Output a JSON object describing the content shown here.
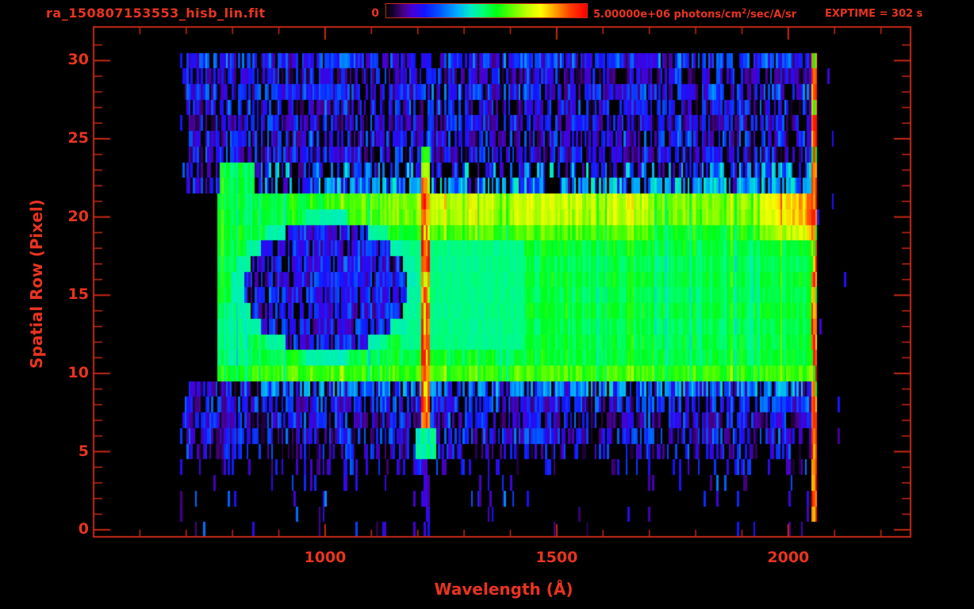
{
  "header": {
    "title": "ra_150807153553_hisb_lin.fit",
    "colorbar_min": "0",
    "colorbar_max_value": "5.00000e+06",
    "colorbar_units_pre": " photons/cm",
    "colorbar_units_sup": "2",
    "colorbar_units_post": "/sec/A/sr",
    "exptime": "EXPTIME = 302 s"
  },
  "chart_data": {
    "type": "heatmap",
    "title": "ra_150807153553_hisb_lin.fit",
    "xlabel": "Wavelength (Å)",
    "ylabel": "Spatial Row (Pixel)",
    "xlim": [
      500,
      2264
    ],
    "ylim": [
      -0.5,
      32.2
    ],
    "x_major_ticks": [
      1000,
      1500,
      2000
    ],
    "x_minor_start": 600,
    "x_minor_step": 100,
    "x_minor_end": 2200,
    "y_major_ticks": [
      0,
      5,
      10,
      15,
      20,
      25,
      30
    ],
    "y_minor_step": 1,
    "y_minor_max": 31,
    "colorbar": {
      "min": 0,
      "max": 5000000,
      "units": "photons/cm^2/sec/A/sr"
    },
    "exposure_time_s": 302,
    "colors": {
      "text": "#e83420",
      "line": "#c62a16",
      "background": "#000000"
    },
    "colormap_stops": [
      [
        0.0,
        0,
        0,
        0
      ],
      [
        0.04,
        30,
        0,
        60
      ],
      [
        0.08,
        70,
        0,
        130
      ],
      [
        0.13,
        70,
        0,
        220
      ],
      [
        0.19,
        20,
        20,
        255
      ],
      [
        0.27,
        0,
        90,
        255
      ],
      [
        0.35,
        0,
        170,
        255
      ],
      [
        0.42,
        0,
        235,
        200
      ],
      [
        0.48,
        0,
        255,
        120
      ],
      [
        0.55,
        0,
        255,
        20
      ],
      [
        0.62,
        90,
        255,
        0
      ],
      [
        0.7,
        190,
        255,
        0
      ],
      [
        0.77,
        255,
        255,
        0
      ],
      [
        0.85,
        255,
        150,
        0
      ],
      [
        0.92,
        255,
        60,
        0
      ],
      [
        1.0,
        255,
        0,
        0
      ]
    ],
    "data_extent": {
      "wavelength_min": 683,
      "wavelength_max": 2062,
      "row_min": 0,
      "row_max": 30
    },
    "features": {
      "seed": 20150807,
      "column_bin_angstrom": 4.45,
      "spectrum_band": {
        "row_bottom": 9.4,
        "row_top": 21.6,
        "wavelength_min": 766,
        "wavelength_max": 2055,
        "base_value": 0.52
      },
      "yellow_row_bump": {
        "row_center": 20.55,
        "row_sigma": 1.05,
        "amplitude": 0.16,
        "onset_wavelength": [
          880,
          1150
        ]
      },
      "mid_yellow_bonus": {
        "wavelength": [
          1230,
          1700
        ],
        "rows": [
          19,
          21
        ],
        "bonus": 0.05
      },
      "lower_bright_row": {
        "row_center": 10.2,
        "row_sigma": 0.8,
        "amplitude": 0.06
      },
      "left_bump": {
        "wavelength": [
          768,
          845
        ],
        "row_top": 23.4
      },
      "left_hole": {
        "wavelength_center": 1000,
        "row_center": 15.5,
        "wavelength_radius": 178,
        "row_radius": 4.05
      },
      "cyan_zone": {
        "wavelength": [
          1160,
          1430
        ],
        "rows": [
          12,
          18.5
        ],
        "value": 0.45
      },
      "lyman_alpha": {
        "wavelength": [
          1205,
          1224
        ],
        "rows_red": [
          7,
          22
        ],
        "row_shoulder": 23,
        "row_cap": 24,
        "rows_foot": [
          5,
          6
        ],
        "foot_wavelength": [
          1193,
          1236
        ],
        "value": 0.9
      },
      "right_edge": {
        "wavelength": [
          2049,
          2062
        ],
        "rows": [
          1,
          30
        ],
        "value": 0.9
      },
      "right_warm_ramp": {
        "wavelength_start": 1880,
        "rows": [
          19,
          21
        ],
        "max_bonus": 0.2
      },
      "row_noise_density": [
        0.03,
        0.03,
        0.04,
        0.05,
        0.22,
        0.5,
        0.68,
        0.78,
        0.8,
        0.7,
        0,
        0,
        0,
        0,
        0,
        0,
        0,
        0,
        0,
        0,
        0,
        0,
        0.85,
        0.8,
        0.8,
        0.75,
        0.8,
        0.7,
        0.8,
        0.75,
        0.82,
        0
      ],
      "row_value_bias": [
        0,
        0,
        0,
        0,
        -0.02,
        -0.03,
        -0.01,
        -0.02,
        0.01,
        0,
        0.02,
        -0.015,
        0,
        -0.01,
        0.01,
        -0.01,
        0.005,
        -0.015,
        0.01,
        0.015,
        0,
        0,
        0,
        -0.01,
        -0.02,
        -0.01,
        -0.03,
        -0.015,
        0.01,
        -0.04,
        0.02,
        0
      ],
      "speckle_right_of_data": {
        "wavelength_max": 2126,
        "density": 0.025
      }
    }
  }
}
